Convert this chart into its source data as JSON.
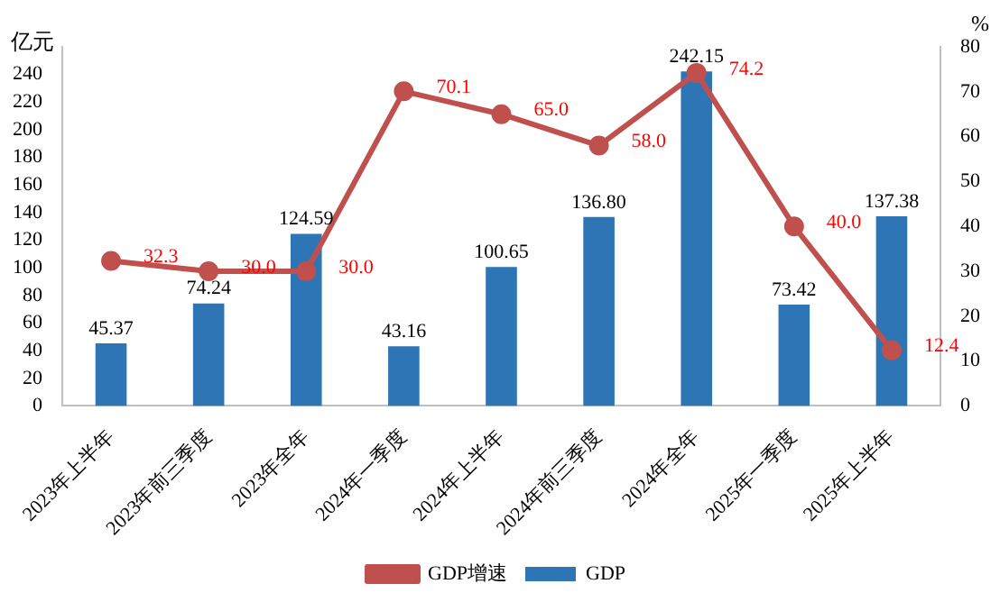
{
  "chart_data": {
    "type": "bar",
    "ylabel": "亿元",
    "y2label": "%",
    "categories": [
      "2023年上半年",
      "2023年前三季度",
      "2023年全年",
      "2024年一季度",
      "2024年上半年",
      "2024年前三季度",
      "2024年全年",
      "2025年一季度",
      "2025年上半年"
    ],
    "series": [
      {
        "name": "GDP",
        "color": "#2e75b6",
        "values": [
          45.37,
          74.24,
          124.59,
          43.16,
          100.65,
          136.8,
          242.15,
          73.42,
          137.38
        ],
        "value_labels": [
          "45.37",
          "74.24",
          "124.59",
          "43.16",
          "100.65",
          "136.80",
          "242.15",
          "73.42",
          "137.38"
        ]
      },
      {
        "name": "GDP增速",
        "type": "line",
        "axis": "y2",
        "color": "#c0504d",
        "marker": "circle",
        "values": [
          32.3,
          30.0,
          30.0,
          70.1,
          65.0,
          58.0,
          74.2,
          40.0,
          12.4
        ],
        "value_labels": [
          "32.3",
          "30.0",
          "30.0",
          "70.1",
          "65.0",
          "58.0",
          "74.2",
          "40.0",
          "12.4"
        ]
      }
    ],
    "ylim": [
      0,
      260
    ],
    "yticks": [
      0,
      20,
      40,
      60,
      80,
      100,
      120,
      140,
      160,
      180,
      200,
      220,
      240
    ],
    "y2lim": [
      0,
      80
    ],
    "y2ticks": [
      0,
      10,
      20,
      30,
      40,
      50,
      60,
      70,
      80
    ],
    "grid": false,
    "legend": "bottom"
  }
}
